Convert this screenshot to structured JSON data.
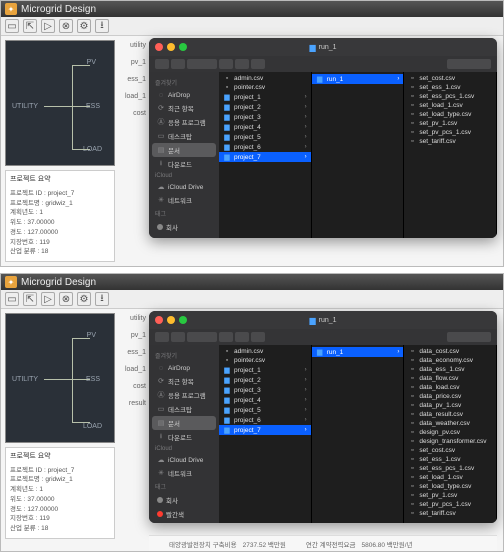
{
  "app_title": "Microgrid Design",
  "toolbar_icons": [
    "folder",
    "open",
    "play",
    "gear",
    "gear2",
    "download"
  ],
  "diagram": {
    "pv": "PV",
    "ess": "ESS",
    "load": "LOAD",
    "utility": "UTILITY"
  },
  "sidebar_labels": {
    "top": [
      "utility",
      "pv_1",
      "ess_1",
      "load_1",
      "cost"
    ],
    "bottom": [
      "utility",
      "pv_1",
      "ess_1",
      "load_1",
      "cost",
      "result"
    ]
  },
  "summary": {
    "title": "프로젝트 요약",
    "lines": [
      "프로젝트 ID : project_7",
      "프로젝트명 : gridwiz_1",
      "계획년도 : 1",
      "위도 : 37.00000",
      "경도 : 127.00000",
      "지장번호 : 119",
      "산업 분류 : 18"
    ]
  },
  "finder": {
    "title": "run_1",
    "favorites_head": "즐겨찾기",
    "favorites": [
      {
        "icon": "airdrop",
        "label": "AirDrop"
      },
      {
        "icon": "clock",
        "label": "최근 항목"
      },
      {
        "icon": "app",
        "label": "응용 프로그램"
      },
      {
        "icon": "desktop",
        "label": "데스크탑"
      },
      {
        "icon": "doc",
        "label": "문서",
        "selected": true
      },
      {
        "icon": "download",
        "label": "다운로드"
      }
    ],
    "icloud_head": "iCloud",
    "icloud": [
      {
        "icon": "cloud",
        "label": "iCloud Drive"
      },
      {
        "icon": "net",
        "label": "네트워크"
      }
    ],
    "tags_head": "태그",
    "tags": [
      {
        "color": "#888",
        "label": "회사"
      },
      {
        "color": "#ff3b30",
        "label": "빨간색"
      },
      {
        "color": "#ff3b30",
        "label": "중요"
      },
      {
        "color": "#888",
        "label": ""
      }
    ],
    "top_col1": [
      {
        "t": "file",
        "n": "admin.csv"
      },
      {
        "t": "file",
        "n": "pointer.csv"
      },
      {
        "t": "folder",
        "n": "project_1"
      },
      {
        "t": "folder",
        "n": "project_2"
      },
      {
        "t": "folder",
        "n": "project_3"
      },
      {
        "t": "folder",
        "n": "project_4"
      },
      {
        "t": "folder",
        "n": "project_5"
      },
      {
        "t": "folder",
        "n": "project_6"
      },
      {
        "t": "folder",
        "n": "project_7",
        "sel": true
      }
    ],
    "top_col2": [
      {
        "t": "folder",
        "n": "run_1",
        "sel": true
      }
    ],
    "top_col3": [
      {
        "t": "file",
        "n": "set_cost.csv"
      },
      {
        "t": "file",
        "n": "set_ess_1.csv"
      },
      {
        "t": "file",
        "n": "set_ess_pcs_1.csv"
      },
      {
        "t": "file",
        "n": "set_load_1.csv"
      },
      {
        "t": "file",
        "n": "set_load_type.csv"
      },
      {
        "t": "file",
        "n": "set_pv_1.csv"
      },
      {
        "t": "file",
        "n": "set_pv_pcs_1.csv"
      },
      {
        "t": "file",
        "n": "set_tariff.csv"
      }
    ],
    "bot_col1": [
      {
        "t": "file",
        "n": "admin.csv"
      },
      {
        "t": "file",
        "n": "pointer.csv"
      },
      {
        "t": "folder",
        "n": "project_1"
      },
      {
        "t": "folder",
        "n": "project_2"
      },
      {
        "t": "folder",
        "n": "project_3"
      },
      {
        "t": "folder",
        "n": "project_4"
      },
      {
        "t": "folder",
        "n": "project_5"
      },
      {
        "t": "folder",
        "n": "project_6"
      },
      {
        "t": "folder",
        "n": "project_7",
        "sel": true
      }
    ],
    "bot_col2": [
      {
        "t": "folder",
        "n": "run_1",
        "sel": true
      }
    ],
    "bot_col3": [
      {
        "t": "file",
        "n": "data_cost.csv"
      },
      {
        "t": "file",
        "n": "data_economy.csv"
      },
      {
        "t": "file",
        "n": "data_ess_1.csv"
      },
      {
        "t": "file",
        "n": "data_flow.csv"
      },
      {
        "t": "file",
        "n": "data_load.csv"
      },
      {
        "t": "file",
        "n": "data_price.csv"
      },
      {
        "t": "file",
        "n": "data_pv_1.csv"
      },
      {
        "t": "file",
        "n": "data_result.csv"
      },
      {
        "t": "file",
        "n": "data_weather.csv"
      },
      {
        "t": "file",
        "n": "design_pv.csv"
      },
      {
        "t": "file",
        "n": "design_transformer.csv"
      },
      {
        "t": "file",
        "n": "set_cost.csv"
      },
      {
        "t": "file",
        "n": "set_ess_1.csv"
      },
      {
        "t": "file",
        "n": "set_ess_pcs_1.csv"
      },
      {
        "t": "file",
        "n": "set_load_1.csv"
      },
      {
        "t": "file",
        "n": "set_load_type.csv"
      },
      {
        "t": "file",
        "n": "set_pv_1.csv"
      },
      {
        "t": "file",
        "n": "set_pv_pcs_1.csv"
      },
      {
        "t": "file",
        "n": "set_tariff.csv"
      }
    ]
  },
  "stats": [
    {
      "label": "태양광발전장치 구축비용",
      "val": "2737.52 백만원"
    },
    {
      "label": "연간 계약전력요금",
      "val": "5806.80 백만원/년"
    }
  ]
}
